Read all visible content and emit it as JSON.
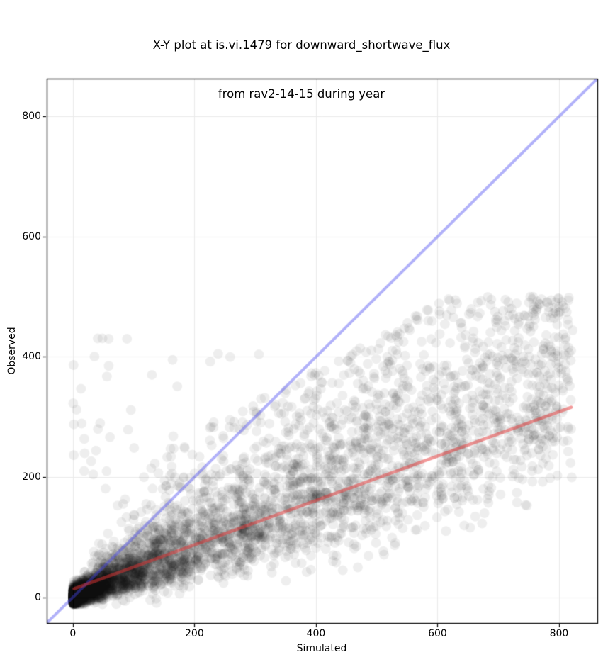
{
  "chart_data": {
    "type": "scatter",
    "title": "X-Y plot at is.vi.1479 for downward_shortwave_flux from rav2-14-15 during year",
    "title_line1": "X-Y plot at is.vi.1479 for downward_shortwave_flux",
    "title_line2": "from rav2-14-15 during year",
    "xlabel": "Simulated",
    "ylabel": "Observed",
    "xlim": [
      -43,
      863
    ],
    "ylim": [
      -43,
      863
    ],
    "x_ticks": [
      0,
      200,
      400,
      600,
      800
    ],
    "y_ticks": [
      0,
      200,
      400,
      600,
      800
    ],
    "grid": true,
    "colors": {
      "background": "#ffffff",
      "grid": "#eaeaea",
      "spine": "#000000",
      "tick": "#000000",
      "point": "#000000",
      "identity_line": "#4646f0",
      "fit_line": "#e63535"
    },
    "point_style": {
      "radius": 7,
      "alpha": 0.065
    },
    "identity_line": {
      "x0": -43,
      "y0": -43,
      "x1": 863,
      "y1": 863,
      "alpha": 0.42,
      "width": 4
    },
    "fit_line": {
      "x0": 2,
      "y0": 14,
      "x1": 820,
      "y1": 316,
      "alpha": 0.5,
      "width": 4.5
    },
    "data_range": {
      "x_min": 0,
      "x_max": 820,
      "y_min": -12,
      "y_max": 497
    },
    "notable_points": [
      [
        89,
        430
      ],
      [
        59,
        385
      ],
      [
        164,
        395
      ],
      [
        226,
        392
      ],
      [
        756,
        496
      ],
      [
        239,
        405
      ],
      [
        130,
        370
      ],
      [
        645,
        415
      ],
      [
        306,
        404
      ],
      [
        752,
        455
      ]
    ],
    "scatter_model": {
      "n": 5500,
      "seed": 1479,
      "x_max": 820,
      "x_power": 2.2,
      "x_jitter_sigma": 3,
      "zero_cluster_frac": 0.12,
      "zero_cluster_sigma": 6,
      "ratio_median": 0.44,
      "ratio_log_sigma_low": 0.55,
      "ratio_log_sigma_high": 0.3,
      "ratio_min": 0.02,
      "ratio_max": 1.75,
      "y_add_sigma": 9,
      "y_min": -12,
      "y_max": 500,
      "cap_slope": 0.55,
      "cap_intercept": 160,
      "outlier_frac": 0.012,
      "outlier_x_max": 260,
      "outlier_y_min": 150,
      "outlier_y_max": 435
    }
  }
}
